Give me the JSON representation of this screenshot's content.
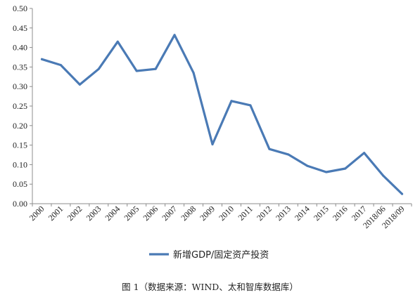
{
  "chart_data": {
    "type": "line",
    "categories": [
      "2000",
      "2001",
      "2002",
      "2003",
      "2004",
      "2005",
      "2006",
      "2007",
      "2008",
      "2009",
      "2010",
      "2011",
      "2012",
      "2013",
      "2014",
      "2015",
      "2016",
      "2017",
      "2018/06",
      "2018/09"
    ],
    "series": [
      {
        "name": "新增GDP/固定资产投资",
        "values": [
          0.37,
          0.355,
          0.305,
          0.345,
          0.415,
          0.34,
          0.345,
          0.432,
          0.335,
          0.152,
          0.263,
          0.252,
          0.14,
          0.126,
          0.097,
          0.081,
          0.09,
          0.13,
          0.072,
          0.025
        ],
        "color": "#4a7ab5"
      }
    ],
    "title": "",
    "xlabel": "",
    "ylabel": "",
    "ylim": [
      0,
      0.5
    ],
    "yticks": [
      "0.00",
      "0.05",
      "0.10",
      "0.15",
      "0.20",
      "0.25",
      "0.30",
      "0.35",
      "0.40",
      "0.45",
      "0.50"
    ],
    "grid": false,
    "legend_position": "bottom"
  },
  "caption": "图 1（数据来源：WIND、太和智库数据库）"
}
